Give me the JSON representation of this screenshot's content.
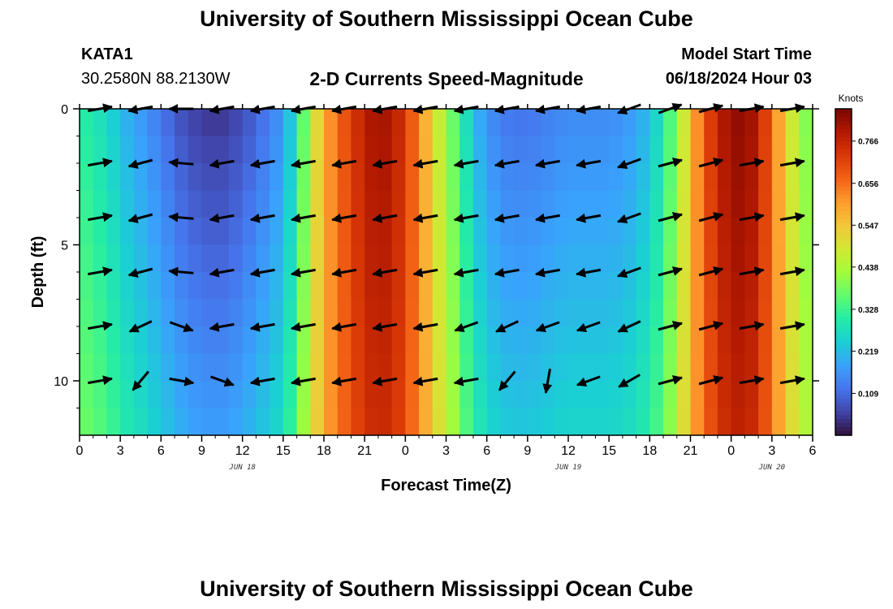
{
  "page": {
    "title": "University of Southern Mississippi Ocean Cube",
    "station": "KATA1",
    "coords": "30.2580N  88.2130W",
    "subtitle": "2-D Currents Speed-Magnitude",
    "model_label": "Model Start Time",
    "model_time": "06/18/2024 Hour 03",
    "footer_title": "University of Southern Mississippi Ocean Cube"
  },
  "colors": {
    "colormap": [
      "#30123b",
      "#4145ab",
      "#4675ed",
      "#39a2fc",
      "#1bcfd4",
      "#24eca6",
      "#61fc6c",
      "#a4fc3b",
      "#d1e834",
      "#f3c63a",
      "#fe9b2d",
      "#f36315",
      "#d93806",
      "#b11901",
      "#7a0402"
    ]
  },
  "chart_data": {
    "type": "heatmap",
    "xlabel": "Forecast Time(Z)",
    "ylabel": "Depth (ft)",
    "colorbar_label": "Knots",
    "x_range": [
      0,
      54
    ],
    "y_range": [
      0,
      12
    ],
    "x_ticks": [
      0,
      3,
      6,
      9,
      12,
      15,
      18,
      21,
      24,
      27,
      30,
      33,
      36,
      39,
      42,
      45,
      48,
      51,
      54
    ],
    "x_tick_labels": [
      "0",
      "3",
      "6",
      "9",
      "12",
      "15",
      "18",
      "21",
      "0",
      "3",
      "6",
      "9",
      "12",
      "15",
      "18",
      "21",
      "0",
      "3",
      "6"
    ],
    "y_ticks": [
      0,
      5,
      10
    ],
    "y_tick_labels": [
      "0",
      "5",
      "10"
    ],
    "date_labels": [
      {
        "x": 12,
        "text": "JUN 18"
      },
      {
        "x": 36,
        "text": "JUN 19"
      },
      {
        "x": 51,
        "text": "JUN 20"
      }
    ],
    "colorbar": {
      "min": 0,
      "max": 0.85,
      "ticks": [
        0.109,
        0.219,
        0.328,
        0.438,
        0.547,
        0.656,
        0.766
      ],
      "tick_labels": [
        "0.109",
        "0.219",
        "0.328",
        "0.438",
        "0.547",
        "0.656",
        "0.766"
      ]
    },
    "speed_profile": {
      "hours": [
        0,
        1,
        2,
        3,
        4,
        5,
        6,
        7,
        8,
        9,
        10,
        11,
        12,
        13,
        14,
        15,
        16,
        17,
        18,
        19,
        20,
        21,
        22,
        23,
        24,
        25,
        26,
        27,
        28,
        29,
        30,
        31,
        32,
        33,
        34,
        35,
        36,
        37,
        38,
        39,
        40,
        41,
        42,
        43,
        44,
        45,
        46,
        47,
        48,
        49,
        50,
        51,
        52,
        53,
        54
      ],
      "surface_knots": [
        0.31,
        0.29,
        0.26,
        0.22,
        0.18,
        0.16,
        0.12,
        0.09,
        0.06,
        0.05,
        0.04,
        0.05,
        0.07,
        0.1,
        0.13,
        0.17,
        0.28,
        0.45,
        0.58,
        0.66,
        0.72,
        0.78,
        0.81,
        0.79,
        0.73,
        0.63,
        0.52,
        0.42,
        0.32,
        0.22,
        0.16,
        0.13,
        0.12,
        0.12,
        0.13,
        0.14,
        0.15,
        0.15,
        0.15,
        0.15,
        0.16,
        0.18,
        0.22,
        0.29,
        0.4,
        0.56,
        0.68,
        0.77,
        0.82,
        0.83,
        0.78,
        0.66,
        0.53,
        0.43,
        0.36
      ]
    },
    "vectors": {
      "depths": [
        0,
        2,
        4,
        6,
        8,
        10
      ],
      "hours": [
        1.5,
        4.5,
        7.5,
        10.5,
        13.5,
        16.5,
        19.5,
        22.5,
        25.5,
        28.5,
        31.5,
        34.5,
        37.5,
        40.5,
        43.5,
        46.5,
        49.5,
        52.5
      ],
      "directions_deg": [
        [
          80,
          260,
          270,
          260,
          260,
          260,
          260,
          260,
          260,
          260,
          260,
          260,
          260,
          250,
          70,
          75,
          80,
          80
        ],
        [
          80,
          255,
          275,
          260,
          260,
          260,
          260,
          260,
          260,
          260,
          260,
          260,
          260,
          250,
          75,
          75,
          80,
          80
        ],
        [
          80,
          255,
          275,
          260,
          260,
          260,
          260,
          260,
          260,
          260,
          260,
          260,
          260,
          250,
          75,
          75,
          80,
          80
        ],
        [
          80,
          255,
          275,
          260,
          260,
          260,
          260,
          260,
          260,
          260,
          260,
          260,
          260,
          250,
          75,
          75,
          80,
          80
        ],
        [
          80,
          245,
          110,
          260,
          260,
          260,
          260,
          260,
          260,
          250,
          245,
          250,
          250,
          245,
          75,
          75,
          80,
          80
        ],
        [
          80,
          220,
          100,
          110,
          260,
          260,
          260,
          260,
          260,
          260,
          220,
          190,
          250,
          240,
          75,
          75,
          80,
          80
        ]
      ]
    }
  }
}
